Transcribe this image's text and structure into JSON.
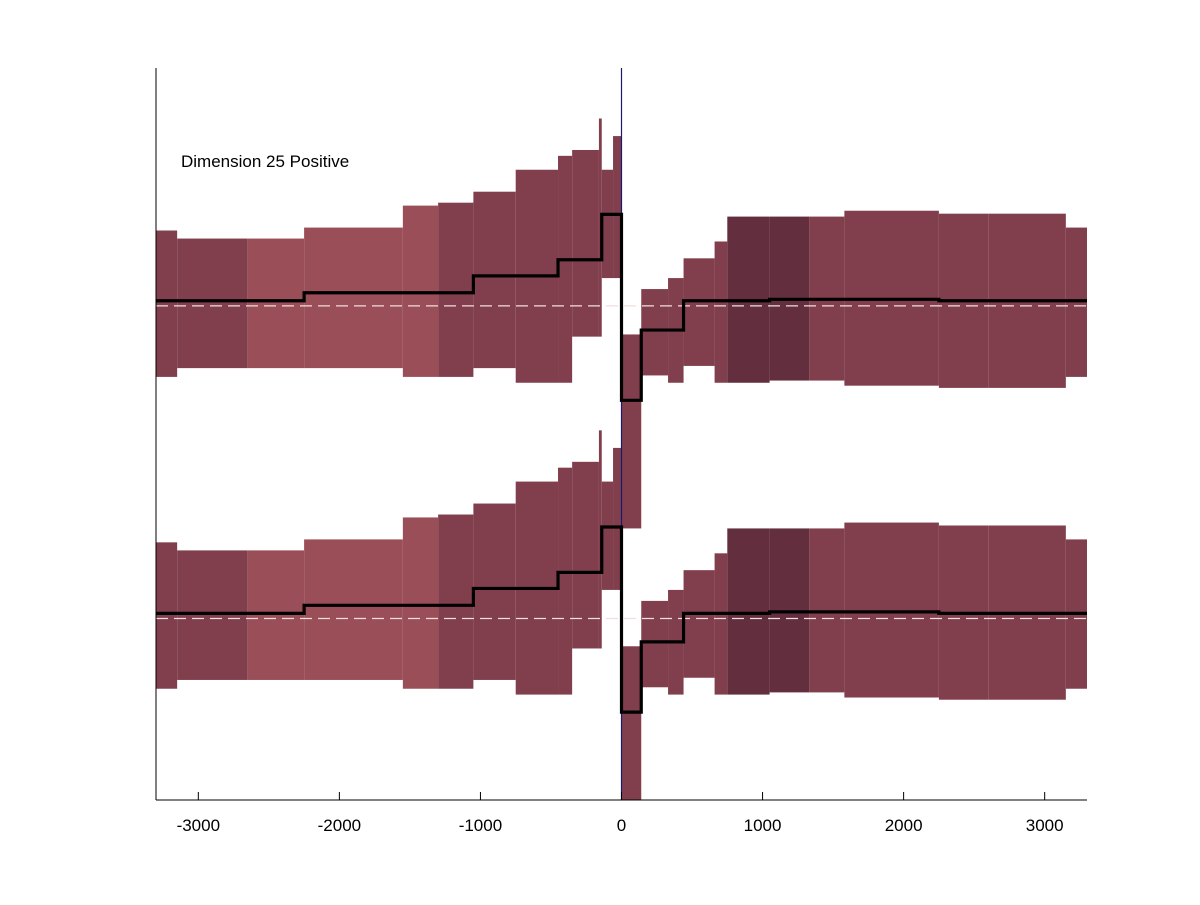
{
  "chart_data": {
    "type": "area",
    "title": "",
    "xlabel": "",
    "ylabel": "",
    "annotation": "Dimension 25 Positive",
    "xlim": [
      -3300,
      3300
    ],
    "ylim": [
      0,
      1
    ],
    "x_ticks": [
      -3000,
      -2000,
      -1000,
      0,
      1000,
      2000,
      3000
    ],
    "x_tick_labels": [
      "-3000",
      "-2000",
      "-1000",
      "0",
      "1000",
      "2000",
      "3000"
    ],
    "grid": false,
    "legend": "none",
    "colors": {
      "band_light": "#9a4e57",
      "band_mid": "#813f4d",
      "band_dark": "#632f3f",
      "median_line": "#000000",
      "baseline": "#f2dede",
      "zero_line": "#1a1a6e",
      "axis": "#000000"
    },
    "panels": [
      {
        "name": "",
        "baseline": 0.675,
        "segments": [
          {
            "x0": -3300,
            "x1": -3150,
            "lower": 0.578,
            "upper": 0.778,
            "median": 0.682,
            "shade": "band_mid"
          },
          {
            "x0": -3150,
            "x1": -2650,
            "lower": 0.59,
            "upper": 0.767,
            "median": 0.682,
            "shade": "band_mid"
          },
          {
            "x0": -2650,
            "x1": -2250,
            "lower": 0.59,
            "upper": 0.767,
            "median": 0.682,
            "shade": "band_light"
          },
          {
            "x0": -2250,
            "x1": -1550,
            "lower": 0.59,
            "upper": 0.782,
            "median": 0.693,
            "shade": "band_light"
          },
          {
            "x0": -1550,
            "x1": -1300,
            "lower": 0.578,
            "upper": 0.812,
            "median": 0.693,
            "shade": "band_light"
          },
          {
            "x0": -1300,
            "x1": -1050,
            "lower": 0.578,
            "upper": 0.816,
            "median": 0.693,
            "shade": "band_mid"
          },
          {
            "x0": -1050,
            "x1": -750,
            "lower": 0.59,
            "upper": 0.831,
            "median": 0.716,
            "shade": "band_mid"
          },
          {
            "x0": -750,
            "x1": -450,
            "lower": 0.57,
            "upper": 0.861,
            "median": 0.716,
            "shade": "band_mid"
          },
          {
            "x0": -450,
            "x1": -350,
            "lower": 0.57,
            "upper": 0.88,
            "median": 0.738,
            "shade": "band_mid"
          },
          {
            "x0": -350,
            "x1": -160,
            "lower": 0.633,
            "upper": 0.888,
            "median": 0.738,
            "shade": "band_mid"
          },
          {
            "x0": -160,
            "x1": -140,
            "lower": 0.633,
            "upper": 0.931,
            "median": 0.738,
            "shade": "band_mid"
          },
          {
            "x0": -140,
            "x1": -60,
            "lower": 0.713,
            "upper": 0.861,
            "median": 0.8,
            "shade": "band_mid"
          },
          {
            "x0": -60,
            "x1": 0,
            "lower": 0.713,
            "upper": 0.907,
            "median": 0.8,
            "shade": "band_mid"
          },
          {
            "x0": 0,
            "x1": 140,
            "lower": 0.371,
            "upper": 0.636,
            "median": 0.546,
            "shade": "band_mid"
          },
          {
            "x0": 140,
            "x1": 330,
            "lower": 0.58,
            "upper": 0.698,
            "median": 0.642,
            "shade": "band_mid"
          },
          {
            "x0": 330,
            "x1": 440,
            "lower": 0.57,
            "upper": 0.713,
            "median": 0.642,
            "shade": "band_mid"
          },
          {
            "x0": 440,
            "x1": 660,
            "lower": 0.593,
            "upper": 0.74,
            "median": 0.682,
            "shade": "band_mid"
          },
          {
            "x0": 660,
            "x1": 750,
            "lower": 0.57,
            "upper": 0.763,
            "median": 0.682,
            "shade": "band_mid"
          },
          {
            "x0": 750,
            "x1": 1050,
            "lower": 0.57,
            "upper": 0.797,
            "median": 0.682,
            "shade": "band_dark"
          },
          {
            "x0": 1050,
            "x1": 1330,
            "lower": 0.573,
            "upper": 0.797,
            "median": 0.684,
            "shade": "band_dark"
          },
          {
            "x0": 1330,
            "x1": 1580,
            "lower": 0.573,
            "upper": 0.797,
            "median": 0.684,
            "shade": "band_mid"
          },
          {
            "x0": 1580,
            "x1": 2250,
            "lower": 0.566,
            "upper": 0.805,
            "median": 0.684,
            "shade": "band_mid"
          },
          {
            "x0": 2250,
            "x1": 2600,
            "lower": 0.563,
            "upper": 0.801,
            "median": 0.682,
            "shade": "band_mid"
          },
          {
            "x0": 2600,
            "x1": 3150,
            "lower": 0.563,
            "upper": 0.801,
            "median": 0.682,
            "shade": "band_mid"
          },
          {
            "x0": 3150,
            "x1": 3300,
            "lower": 0.578,
            "upper": 0.782,
            "median": 0.682,
            "shade": "band_mid"
          }
        ]
      },
      {
        "name": "",
        "baseline": 0.248,
        "segments": [
          {
            "x0": -3300,
            "x1": -3150,
            "lower": 0.152,
            "upper": 0.352,
            "median": 0.255,
            "shade": "band_mid"
          },
          {
            "x0": -3150,
            "x1": -2650,
            "lower": 0.164,
            "upper": 0.341,
            "median": 0.255,
            "shade": "band_mid"
          },
          {
            "x0": -2650,
            "x1": -2250,
            "lower": 0.164,
            "upper": 0.341,
            "median": 0.255,
            "shade": "band_light"
          },
          {
            "x0": -2250,
            "x1": -1550,
            "lower": 0.164,
            "upper": 0.356,
            "median": 0.266,
            "shade": "band_light"
          },
          {
            "x0": -1550,
            "x1": -1300,
            "lower": 0.152,
            "upper": 0.386,
            "median": 0.266,
            "shade": "band_light"
          },
          {
            "x0": -1300,
            "x1": -1050,
            "lower": 0.152,
            "upper": 0.39,
            "median": 0.266,
            "shade": "band_mid"
          },
          {
            "x0": -1050,
            "x1": -750,
            "lower": 0.164,
            "upper": 0.405,
            "median": 0.289,
            "shade": "band_mid"
          },
          {
            "x0": -750,
            "x1": -450,
            "lower": 0.144,
            "upper": 0.435,
            "median": 0.289,
            "shade": "band_mid"
          },
          {
            "x0": -450,
            "x1": -350,
            "lower": 0.144,
            "upper": 0.454,
            "median": 0.311,
            "shade": "band_mid"
          },
          {
            "x0": -350,
            "x1": -160,
            "lower": 0.207,
            "upper": 0.462,
            "median": 0.311,
            "shade": "band_mid"
          },
          {
            "x0": -160,
            "x1": -140,
            "lower": 0.207,
            "upper": 0.505,
            "median": 0.311,
            "shade": "band_mid"
          },
          {
            "x0": -140,
            "x1": -60,
            "lower": 0.287,
            "upper": 0.435,
            "median": 0.373,
            "shade": "band_mid"
          },
          {
            "x0": -60,
            "x1": 0,
            "lower": 0.287,
            "upper": 0.481,
            "median": 0.373,
            "shade": "band_mid"
          },
          {
            "x0": 0,
            "x1": 140,
            "lower": 0.0,
            "upper": 0.21,
            "median": 0.12,
            "shade": "band_mid"
          },
          {
            "x0": 140,
            "x1": 330,
            "lower": 0.154,
            "upper": 0.272,
            "median": 0.216,
            "shade": "band_mid"
          },
          {
            "x0": 330,
            "x1": 440,
            "lower": 0.144,
            "upper": 0.287,
            "median": 0.216,
            "shade": "band_mid"
          },
          {
            "x0": 440,
            "x1": 660,
            "lower": 0.167,
            "upper": 0.314,
            "median": 0.255,
            "shade": "band_mid"
          },
          {
            "x0": 660,
            "x1": 750,
            "lower": 0.144,
            "upper": 0.337,
            "median": 0.255,
            "shade": "band_mid"
          },
          {
            "x0": 750,
            "x1": 1050,
            "lower": 0.144,
            "upper": 0.371,
            "median": 0.255,
            "shade": "band_dark"
          },
          {
            "x0": 1050,
            "x1": 1330,
            "lower": 0.147,
            "upper": 0.371,
            "median": 0.257,
            "shade": "band_dark"
          },
          {
            "x0": 1330,
            "x1": 1580,
            "lower": 0.147,
            "upper": 0.371,
            "median": 0.257,
            "shade": "band_mid"
          },
          {
            "x0": 1580,
            "x1": 2250,
            "lower": 0.14,
            "upper": 0.379,
            "median": 0.257,
            "shade": "band_mid"
          },
          {
            "x0": 2250,
            "x1": 2600,
            "lower": 0.137,
            "upper": 0.375,
            "median": 0.255,
            "shade": "band_mid"
          },
          {
            "x0": 2600,
            "x1": 3150,
            "lower": 0.137,
            "upper": 0.375,
            "median": 0.255,
            "shade": "band_mid"
          },
          {
            "x0": 3150,
            "x1": 3300,
            "lower": 0.152,
            "upper": 0.356,
            "median": 0.255,
            "shade": "band_mid"
          }
        ]
      }
    ]
  }
}
